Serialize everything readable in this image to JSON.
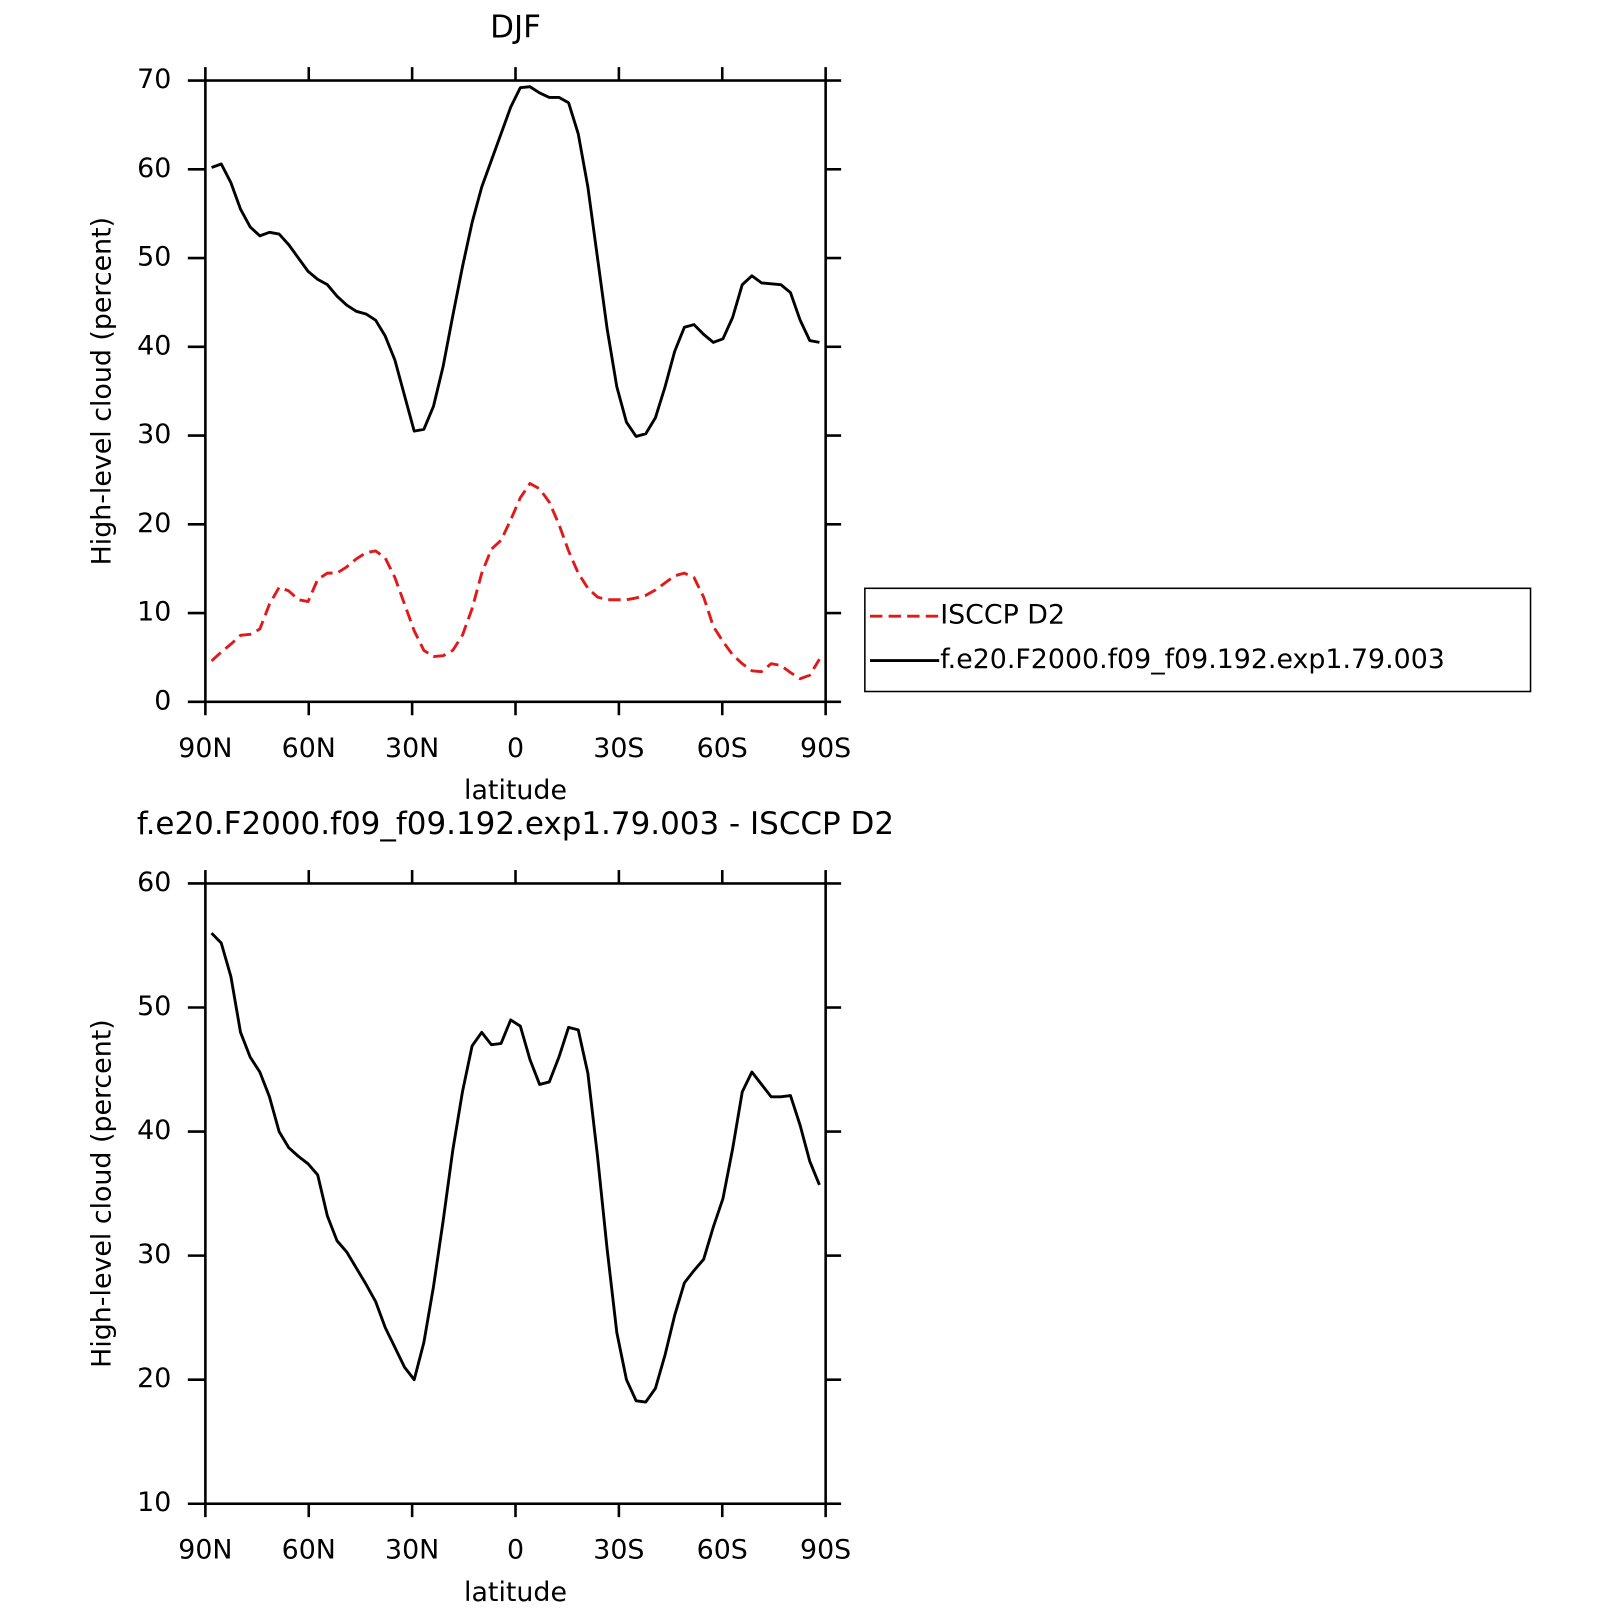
{
  "chart_data": [
    {
      "type": "line",
      "title": "DJF",
      "xlabel": "latitude",
      "ylabel": "High-level cloud (percent)",
      "x": [
        88.2,
        85.4,
        82.6,
        79.8,
        77,
        74.2,
        71.4,
        68.6,
        65.8,
        63,
        60.2,
        57.4,
        54.6,
        51.8,
        49,
        46.2,
        43.4,
        40.6,
        37.8,
        35,
        32.2,
        29.4,
        26.6,
        23.8,
        21,
        18.2,
        15.4,
        12.6,
        9.8,
        7,
        4.2,
        1.4,
        -1.4,
        -4.2,
        -7,
        -9.8,
        -12.6,
        -15.4,
        -18.2,
        -21,
        -23.8,
        -26.6,
        -29.4,
        -32.2,
        -35,
        -37.8,
        -40.6,
        -43.4,
        -46.2,
        -49,
        -51.8,
        -54.6,
        -57.4,
        -60.2,
        -63,
        -65.8,
        -68.6,
        -71.4,
        -74.2,
        -77,
        -79.8,
        -82.6,
        -85.4,
        -88.2
      ],
      "series": [
        {
          "name": "ISCCP D2",
          "color": "#e0191b",
          "dashed": true,
          "values": [
            4.6,
            5.6,
            6.5,
            7.5,
            7.6,
            8.2,
            11,
            12.9,
            12.5,
            11.5,
            11.3,
            13.8,
            14.5,
            14.5,
            15.2,
            16.1,
            16.8,
            17,
            16.2,
            14,
            11,
            8,
            5.8,
            5.1,
            5.2,
            5.8,
            7.5,
            10.5,
            14.5,
            17.2,
            18.2,
            20.5,
            23,
            24.6,
            24,
            22.5,
            20,
            17,
            14.5,
            12.8,
            11.8,
            11.5,
            11.5,
            11.5,
            11.7,
            12,
            12.6,
            13.4,
            14.2,
            14.5,
            14,
            11.8,
            8.5,
            6.8,
            5.3,
            4.3,
            3.5,
            3.4,
            4.3,
            4.1,
            3.3,
            2.6,
            3,
            4.8
          ]
        },
        {
          "name": "f.e20.F2000.f09_f09.192.exp1.79.003",
          "color": "#000000",
          "dashed": false,
          "values": [
            60.2,
            60.6,
            58.5,
            55.5,
            53.5,
            52.5,
            52.9,
            52.7,
            51.5,
            50,
            48.5,
            47.6,
            47,
            45.7,
            44.7,
            44,
            43.7,
            43,
            41.2,
            38.5,
            34.5,
            30.5,
            30.7,
            33.3,
            37.8,
            43.5,
            49,
            54,
            58,
            61,
            64,
            67,
            69.2,
            69.3,
            68.6,
            68.1,
            68.1,
            67.5,
            64,
            58,
            50,
            42,
            35.5,
            31.5,
            29.9,
            30.2,
            32,
            35.5,
            39.5,
            42.2,
            42.5,
            41.4,
            40.5,
            40.9,
            43.3,
            47,
            48,
            47.2,
            47.1,
            47,
            46.1,
            43,
            40.7,
            40.5
          ]
        }
      ],
      "xlim": [
        90,
        -90
      ],
      "xticks": [
        {
          "value": 90,
          "label": "90N"
        },
        {
          "value": 60,
          "label": "60N"
        },
        {
          "value": 30,
          "label": "30N"
        },
        0,
        {
          "value": -30,
          "label": "30S"
        },
        {
          "value": -60,
          "label": "60S"
        },
        {
          "value": -90,
          "label": "90S"
        }
      ],
      "ylim": [
        0,
        70
      ],
      "yticks": [
        0,
        10,
        20,
        30,
        40,
        50,
        60,
        70
      ],
      "legend": "right"
    },
    {
      "type": "line",
      "title": "f.e20.F2000.f09_f09.192.exp1.79.003 - ISCCP D2",
      "xlabel": "latitude",
      "ylabel": "High-level cloud (percent)",
      "x": [
        88.2,
        85.4,
        82.6,
        79.8,
        77,
        74.2,
        71.4,
        68.6,
        65.8,
        63,
        60.2,
        57.4,
        54.6,
        51.8,
        49,
        46.2,
        43.4,
        40.6,
        37.8,
        35,
        32.2,
        29.4,
        26.6,
        23.8,
        21,
        18.2,
        15.4,
        12.6,
        9.8,
        7,
        4.2,
        1.4,
        -1.4,
        -4.2,
        -7,
        -9.8,
        -12.6,
        -15.4,
        -18.2,
        -21,
        -23.8,
        -26.6,
        -29.4,
        -32.2,
        -35,
        -37.8,
        -40.6,
        -43.4,
        -46.2,
        -49,
        -51.8,
        -54.6,
        -57.4,
        -60.2,
        -63,
        -65.8,
        -68.6,
        -71.4,
        -74.2,
        -77,
        -79.8,
        -82.6,
        -85.4,
        -88.2
      ],
      "series": [
        {
          "color": "#000000",
          "dashed": false,
          "values": [
            56,
            55.2,
            52.5,
            48,
            46,
            44.8,
            42.8,
            40,
            38.7,
            38,
            37.4,
            36.5,
            33.2,
            31.2,
            30.3,
            29,
            27.7,
            26.3,
            24.2,
            22.6,
            21,
            20,
            23,
            27.5,
            32.8,
            38.5,
            43.2,
            46.9,
            48,
            47,
            47.1,
            49,
            48.5,
            45.8,
            43.8,
            44,
            46,
            48.4,
            48.2,
            44.7,
            38,
            30.5,
            23.8,
            20,
            18.3,
            18.2,
            19.3,
            22,
            25.2,
            27.8,
            28.8,
            29.7,
            32.3,
            34.6,
            38.6,
            43.2,
            44.8,
            43.8,
            42.8,
            42.8,
            42.9,
            40.5,
            37.6,
            35.7
          ]
        }
      ],
      "xlim": [
        90,
        -90
      ],
      "xticks": [
        {
          "value": 90,
          "label": "90N"
        },
        {
          "value": 60,
          "label": "60N"
        },
        {
          "value": 30,
          "label": "30N"
        },
        0,
        {
          "value": -30,
          "label": "30S"
        },
        {
          "value": -60,
          "label": "60S"
        },
        {
          "value": -90,
          "label": "90S"
        }
      ],
      "ylim": [
        10,
        60
      ],
      "yticks": [
        10,
        20,
        30,
        40,
        50,
        60
      ]
    }
  ]
}
